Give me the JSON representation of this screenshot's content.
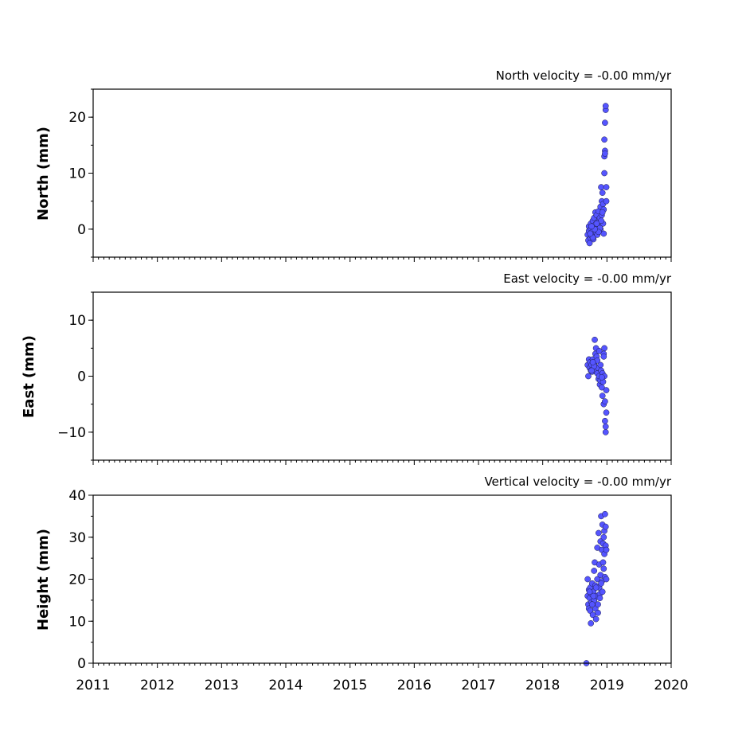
{
  "chart_data": [
    {
      "type": "scatter",
      "title": "North velocity = -0.00 mm/yr",
      "ylabel": "North (mm)",
      "xlim": [
        2011,
        2020
      ],
      "ylim": [
        -5,
        25
      ],
      "yticks": [
        0,
        10,
        20
      ],
      "xticks": [
        2011,
        2012,
        2013,
        2014,
        2015,
        2016,
        2017,
        2018,
        2019,
        2020
      ],
      "x_tick_labels_visible": false,
      "point_color": "#5555ff",
      "x": [
        2018.7,
        2018.71,
        2018.72,
        2018.72,
        2018.73,
        2018.74,
        2018.75,
        2018.75,
        2018.76,
        2018.77,
        2018.78,
        2018.79,
        2018.8,
        2018.8,
        2018.81,
        2018.82,
        2018.82,
        2018.83,
        2018.84,
        2018.85,
        2018.85,
        2018.86,
        2018.87,
        2018.88,
        2018.88,
        2018.89,
        2018.9,
        2018.9,
        2018.91,
        2018.92,
        2018.92,
        2018.93,
        2018.94,
        2018.94,
        2018.95,
        2018.95,
        2018.96,
        2018.96,
        2018.97,
        2018.97,
        2018.98,
        2018.98,
        2018.99,
        2018.99,
        2018.96,
        2018.97,
        2018.93,
        2018.91,
        2018.89,
        2018.87,
        2018.84,
        2018.81,
        2018.78,
        2018.76,
        2018.74
      ],
      "y": [
        -1.0,
        -2.0,
        0.5,
        -0.3,
        -2.5,
        -1.5,
        0.0,
        1.0,
        -1.2,
        -0.5,
        1.5,
        -1.8,
        0.3,
        2.0,
        -1.0,
        3.0,
        0.8,
        -0.6,
        2.5,
        1.2,
        -1.0,
        0.5,
        3.2,
        1.8,
        -0.2,
        2.0,
        4.0,
        0.0,
        7.5,
        5.0,
        2.5,
        6.5,
        4.5,
        1.0,
        -0.8,
        3.5,
        10.0,
        13.0,
        14.0,
        19.0,
        21.3,
        22.0,
        7.5,
        5.0,
        16.0,
        13.5,
        3.0,
        1.5,
        0.2,
        -0.5,
        1.0,
        0.0,
        -1.5,
        0.5,
        -0.8
      ]
    },
    {
      "type": "scatter",
      "title": "East velocity = -0.00 mm/yr",
      "ylabel": "East (mm)",
      "xlim": [
        2011,
        2020
      ],
      "ylim": [
        -15,
        15
      ],
      "yticks": [
        -10,
        0,
        10
      ],
      "xticks": [
        2011,
        2012,
        2013,
        2014,
        2015,
        2016,
        2017,
        2018,
        2019,
        2020
      ],
      "x_tick_labels_visible": false,
      "point_color": "#5555ff",
      "x": [
        2018.7,
        2018.71,
        2018.72,
        2018.73,
        2018.74,
        2018.75,
        2018.76,
        2018.77,
        2018.78,
        2018.79,
        2018.8,
        2018.81,
        2018.82,
        2018.82,
        2018.83,
        2018.84,
        2018.85,
        2018.85,
        2018.86,
        2018.87,
        2018.88,
        2018.88,
        2018.89,
        2018.9,
        2018.9,
        2018.91,
        2018.92,
        2018.93,
        2018.93,
        2018.94,
        2018.95,
        2018.95,
        2018.96,
        2018.97,
        2018.97,
        2018.98,
        2018.98,
        2018.99,
        2018.99,
        2018.96,
        2018.95,
        2018.92,
        2018.8,
        2018.78,
        2018.76
      ],
      "y": [
        2.0,
        0.0,
        3.0,
        1.5,
        2.5,
        1.0,
        2.0,
        0.8,
        3.0,
        1.2,
        2.2,
        6.5,
        4.0,
        1.0,
        5.0,
        3.5,
        0.5,
        2.8,
        1.5,
        -0.5,
        4.5,
        0.0,
        -1.5,
        2.0,
        -0.8,
        1.0,
        -2.0,
        0.5,
        -3.5,
        -1.0,
        4.0,
        -5.0,
        5.0,
        -4.5,
        -8.0,
        -9.0,
        -10.0,
        -6.5,
        -2.5,
        0.0,
        3.5,
        -0.2,
        1.8,
        2.5,
        1.0
      ]
    },
    {
      "type": "scatter",
      "title": "Vertical velocity = -0.00 mm/yr",
      "ylabel": "Height (mm)",
      "xlim": [
        2011,
        2020
      ],
      "ylim": [
        0,
        40
      ],
      "yticks": [
        0,
        10,
        20,
        30,
        40
      ],
      "xticks": [
        2011,
        2012,
        2013,
        2014,
        2015,
        2016,
        2017,
        2018,
        2019,
        2020
      ],
      "xtick_labels": [
        "2011",
        "2012",
        "2013",
        "2014",
        "2015",
        "2016",
        "2017",
        "2018",
        "2019",
        "2020"
      ],
      "point_color": "#5555ff",
      "x": [
        2018.68,
        2018.7,
        2018.7,
        2018.71,
        2018.72,
        2018.72,
        2018.73,
        2018.74,
        2018.74,
        2018.75,
        2018.76,
        2018.76,
        2018.77,
        2018.78,
        2018.79,
        2018.8,
        2018.8,
        2018.81,
        2018.82,
        2018.82,
        2018.83,
        2018.84,
        2018.85,
        2018.85,
        2018.86,
        2018.87,
        2018.88,
        2018.88,
        2018.89,
        2018.9,
        2018.9,
        2018.91,
        2018.92,
        2018.92,
        2018.93,
        2018.94,
        2018.94,
        2018.95,
        2018.95,
        2018.96,
        2018.96,
        2018.97,
        2018.97,
        2018.98,
        2018.98,
        2018.99,
        2018.99,
        2018.93,
        2018.91,
        2018.89,
        2018.86,
        2018.83,
        2018.79,
        2018.77,
        2018.73
      ],
      "y": [
        0.0,
        20.0,
        16.0,
        14.0,
        17.5,
        13.0,
        15.5,
        18.0,
        12.5,
        9.5,
        16.5,
        14.5,
        19.0,
        11.5,
        17.0,
        22.0,
        15.0,
        24.0,
        13.0,
        18.5,
        10.5,
        16.0,
        27.5,
        20.0,
        14.0,
        31.0,
        18.0,
        23.5,
        16.5,
        29.0,
        21.0,
        35.0,
        19.5,
        27.0,
        33.0,
        24.0,
        28.5,
        22.5,
        30.0,
        26.0,
        31.5,
        20.5,
        35.5,
        28.0,
        32.5,
        20.0,
        27.0,
        17.0,
        19.0,
        15.5,
        12.0,
        18.0,
        16.0,
        14.0,
        17.0
      ]
    }
  ]
}
